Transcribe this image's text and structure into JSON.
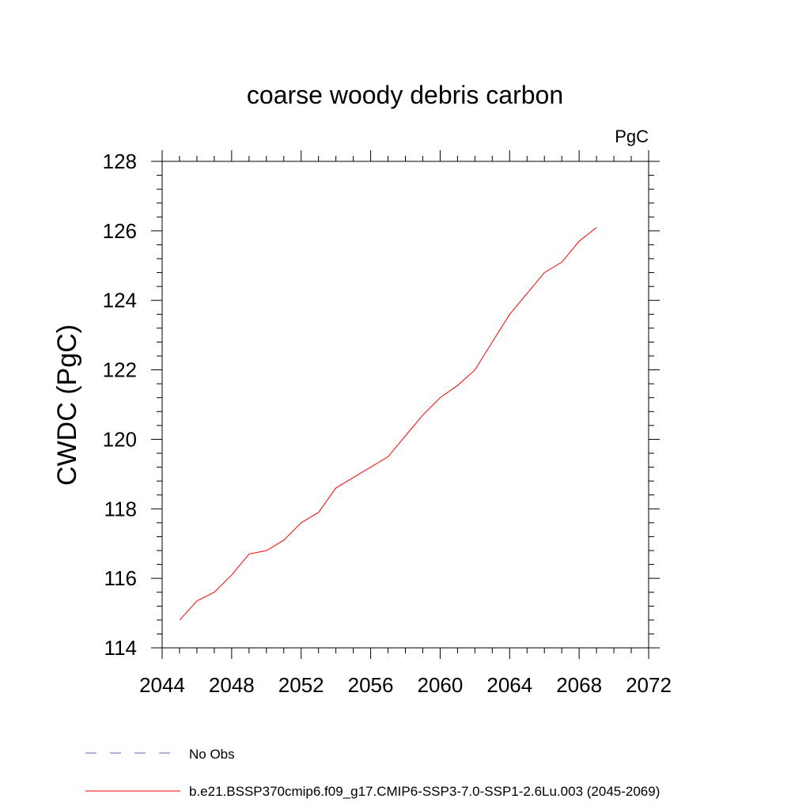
{
  "chart_data": {
    "type": "line",
    "title": "coarse woody debris carbon",
    "units_label": "PgC",
    "ylabel": "CWDC  (PgC)",
    "xlabel": "",
    "xlim": [
      2044,
      2072
    ],
    "ylim": [
      114,
      128
    ],
    "x_ticks": [
      2044,
      2048,
      2052,
      2056,
      2060,
      2064,
      2068,
      2072
    ],
    "y_ticks": [
      114,
      116,
      118,
      120,
      122,
      124,
      126,
      128
    ],
    "grid": false,
    "legend_position": "bottom-left, below plot",
    "series": [
      {
        "name": "b.e21.BSSP370cmip6.f09_g17.CMIP6-SSP3-7.0-SSP1-2.6Lu.003 (2045-2069)",
        "color": "#ff0000",
        "style": "solid",
        "x": [
          2045,
          2046,
          2047,
          2048,
          2049,
          2050,
          2051,
          2052,
          2053,
          2054,
          2055,
          2056,
          2057,
          2058,
          2059,
          2060,
          2061,
          2062,
          2063,
          2064,
          2065,
          2066,
          2067,
          2068,
          2069
        ],
        "y": [
          114.8,
          115.35,
          115.6,
          116.1,
          116.7,
          116.8,
          117.1,
          117.6,
          117.9,
          118.6,
          118.9,
          119.2,
          119.5,
          120.1,
          120.7,
          121.2,
          121.55,
          122.0,
          122.8,
          123.6,
          124.2,
          124.8,
          125.1,
          125.7,
          126.1
        ]
      }
    ],
    "legend": [
      {
        "label": "No Obs",
        "color": "#6b5fb5",
        "style": "dashed"
      },
      {
        "label": "b.e21.BSSP370cmip6.f09_g17.CMIP6-SSP3-7.0-SSP1-2.6Lu.003 (2045-2069)",
        "color": "#ff0000",
        "style": "solid"
      }
    ]
  }
}
